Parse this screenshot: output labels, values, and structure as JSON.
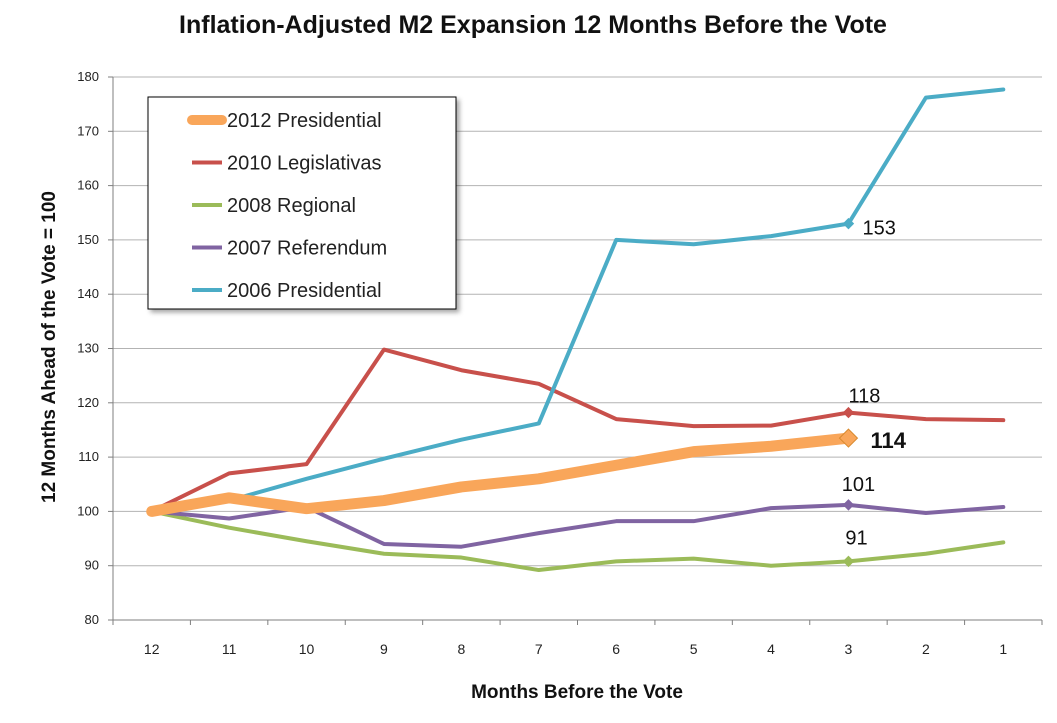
{
  "chart_data": {
    "type": "line",
    "title": "Inflation-Adjusted M2 Expansion 12 Months Before the Vote",
    "xlabel": "Months Before the Vote",
    "ylabel": "12 Months Ahead of the Vote = 100",
    "categories": [
      "12",
      "11",
      "10",
      "9",
      "8",
      "7",
      "6",
      "5",
      "4",
      "3",
      "2",
      "1"
    ],
    "ylim": [
      80,
      180
    ],
    "yticks": [
      80,
      90,
      100,
      110,
      120,
      130,
      140,
      150,
      160,
      170,
      180
    ],
    "grid": "horizontal",
    "legend_position": "top-left",
    "series": [
      {
        "name": "2012 Presidential",
        "color": "#F9A65A",
        "values": [
          100,
          102.5,
          100.5,
          102,
          104.5,
          106,
          108.5,
          111,
          112,
          113.5,
          null,
          null
        ],
        "emphasis": true
      },
      {
        "name": "2010 Legislativas",
        "color": "#C8504B",
        "values": [
          100,
          107,
          108.7,
          129.8,
          126,
          123.5,
          117,
          115.7,
          115.8,
          118.2,
          117,
          116.8
        ]
      },
      {
        "name": "2008 Regional",
        "color": "#9BBB59",
        "values": [
          100,
          97,
          94.5,
          92.2,
          91.5,
          89.2,
          90.8,
          91.3,
          90,
          90.8,
          92.2,
          94.3
        ]
      },
      {
        "name": "2007 Referendum",
        "color": "#8064A2",
        "values": [
          100,
          98.7,
          100.8,
          94,
          93.5,
          96,
          98.2,
          98.2,
          100.6,
          101.2,
          99.7,
          100.8
        ]
      },
      {
        "name": "2006 Presidential",
        "color": "#4BACC6",
        "values": [
          100,
          102,
          106,
          109.7,
          113.2,
          116.2,
          150,
          149.2,
          150.7,
          153,
          176.2,
          177.7
        ]
      }
    ],
    "annotations": [
      {
        "text": "153",
        "series": "2006 Presidential",
        "category": "3"
      },
      {
        "text": "118",
        "series": "2010 Legislativas",
        "category": "3"
      },
      {
        "text": "114",
        "series": "2012 Presidential",
        "category": "3"
      },
      {
        "text": "101",
        "series": "2007 Referendum",
        "category": "3"
      },
      {
        "text": "91",
        "series": "2008 Regional",
        "category": "3"
      }
    ]
  }
}
